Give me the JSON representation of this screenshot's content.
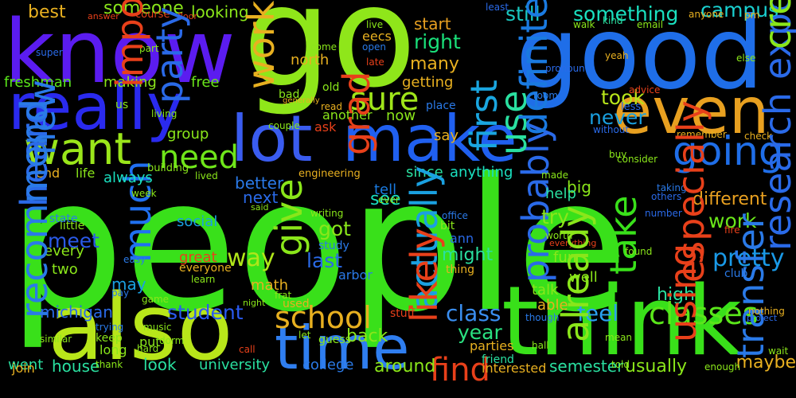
{
  "words": [
    {
      "id": "people",
      "text": "people",
      "color": "#39e01a"
    },
    {
      "id": "go",
      "text": "go",
      "color": "#8fe61a"
    },
    {
      "id": "good",
      "text": "good",
      "color": "#1f6ee8"
    },
    {
      "id": "know",
      "text": "know",
      "color": "#5b1cf0"
    },
    {
      "id": "think",
      "text": "think",
      "color": "#39e01a"
    },
    {
      "id": "also",
      "text": "also",
      "color": "#b8e61a"
    },
    {
      "id": "take",
      "text": "take",
      "color": "#39e01a"
    },
    {
      "id": "make",
      "text": "make",
      "color": "#2060f0"
    },
    {
      "id": "lot",
      "text": "lot",
      "color": "#3a5cf0"
    },
    {
      "id": "time",
      "text": "time",
      "color": "#2f7ef0"
    },
    {
      "id": "even",
      "text": "even",
      "color": "#e8a020"
    },
    {
      "id": "really",
      "text": "really",
      "color": "#2a2aee"
    },
    {
      "id": "want",
      "text": "want",
      "color": "#9ae61a"
    },
    {
      "id": "sure",
      "text": "sure",
      "color": "#a0e61a"
    },
    {
      "id": "going",
      "text": "going",
      "color": "#1f6ee8"
    },
    {
      "id": "need",
      "text": "need",
      "color": "#6fe61a"
    },
    {
      "id": "first",
      "text": "first",
      "color": "#1aa6e0"
    },
    {
      "id": "probably",
      "text": "probably",
      "color": "#2a6ae8"
    },
    {
      "id": "find",
      "text": "find",
      "color": "#e8401a"
    },
    {
      "id": "school",
      "text": "school",
      "color": "#e8b020"
    },
    {
      "id": "classes",
      "text": "classes",
      "color": "#5ae61a"
    },
    {
      "id": "pretty",
      "text": "pretty",
      "color": "#1a9ae8"
    },
    {
      "id": "class",
      "text": "class",
      "color": "#3a8ef0"
    },
    {
      "id": "feel",
      "text": "feel",
      "color": "#2aa0f0"
    },
    {
      "id": "way",
      "text": "way",
      "color": "#b0e61a"
    },
    {
      "id": "much",
      "text": "much",
      "color": "#2070f0"
    },
    {
      "id": "year",
      "text": "year",
      "color": "#2ae080"
    },
    {
      "id": "student",
      "text": "student",
      "color": "#2a5af0"
    },
    {
      "id": "got",
      "text": "got",
      "color": "#8ae61a"
    },
    {
      "id": "last",
      "text": "last",
      "color": "#2a6ae8"
    },
    {
      "id": "try",
      "text": "try",
      "color": "#8ae61a"
    },
    {
      "id": "work",
      "text": "work",
      "color": "#6ae61a"
    },
    {
      "id": "meet",
      "text": "meet",
      "color": "#2a5ae8"
    },
    {
      "id": "something",
      "text": "something",
      "color": "#1ae0c0"
    },
    {
      "id": "still",
      "text": "still",
      "color": "#1ac8c0"
    },
    {
      "id": "campus",
      "text": "campus",
      "color": "#1ad0d0"
    },
    {
      "id": "right",
      "text": "right",
      "color": "#1ae07a"
    },
    {
      "id": "took",
      "text": "took",
      "color": "#b8e61a"
    },
    {
      "id": "never",
      "text": "never",
      "color": "#1aa0e0"
    },
    {
      "id": "someone",
      "text": "someone",
      "color": "#8ae61a"
    },
    {
      "id": "looking",
      "text": "looking",
      "color": "#8ae61a"
    },
    {
      "id": "best",
      "text": "best",
      "color": "#e8b020"
    },
    {
      "id": "freshman",
      "text": "freshman",
      "color": "#5ae61a"
    },
    {
      "id": "making",
      "text": "making",
      "color": "#8ae61a"
    },
    {
      "id": "free",
      "text": "free",
      "color": "#6ae61a"
    },
    {
      "id": "many",
      "text": "many",
      "color": "#e8b020"
    },
    {
      "id": "start",
      "text": "start",
      "color": "#e8a020"
    },
    {
      "id": "getting",
      "text": "getting",
      "color": "#e8b020"
    },
    {
      "id": "north",
      "text": "north",
      "color": "#e8b020"
    },
    {
      "id": "group",
      "text": "group",
      "color": "#8ae61a"
    },
    {
      "id": "different",
      "text": "different",
      "color": "#e8a020"
    },
    {
      "id": "always",
      "text": "always",
      "color": "#1ae0c0"
    },
    {
      "id": "better",
      "text": "better",
      "color": "#2a7ae8"
    },
    {
      "id": "next",
      "text": "next",
      "color": "#2a6ae8"
    },
    {
      "id": "see",
      "text": "see",
      "color": "#1ae0c0"
    },
    {
      "id": "big",
      "text": "big",
      "color": "#8ae61a"
    },
    {
      "id": "help",
      "text": "help",
      "color": "#2ae0a0"
    },
    {
      "id": "since",
      "text": "since",
      "color": "#2ae0a0"
    },
    {
      "id": "anything",
      "text": "anything",
      "color": "#1ae0c0"
    },
    {
      "id": "tell",
      "text": "tell",
      "color": "#1a7ae0"
    },
    {
      "id": "high",
      "text": "high",
      "color": "#2ae0a0"
    },
    {
      "id": "talk",
      "text": "talk",
      "color": "#8ae61a"
    },
    {
      "id": "well",
      "text": "well",
      "color": "#8ae61a"
    },
    {
      "id": "able",
      "text": "able",
      "color": "#e8b020"
    },
    {
      "id": "fun",
      "text": "fun",
      "color": "#8ae61a"
    },
    {
      "id": "actually",
      "text": "actually",
      "color": "#1aa0e0"
    },
    {
      "id": "might",
      "text": "might",
      "color": "#2ae0a0"
    },
    {
      "id": "back",
      "text": "back",
      "color": "#8ae61a"
    },
    {
      "id": "around",
      "text": "around",
      "color": "#8ae61a"
    },
    {
      "id": "usually",
      "text": "usually",
      "color": "#8ae61a"
    },
    {
      "id": "maybe",
      "text": "maybe",
      "color": "#e8b020"
    },
    {
      "id": "semester",
      "text": "semester",
      "color": "#2ae0a0"
    },
    {
      "id": "interested",
      "text": "interested",
      "color": "#e8b020"
    },
    {
      "id": "parties",
      "text": "parties",
      "color": "#e8b020"
    },
    {
      "id": "house",
      "text": "house",
      "color": "#2ae0a0"
    },
    {
      "id": "look",
      "text": "look",
      "color": "#2ae0a0"
    },
    {
      "id": "went",
      "text": "went",
      "color": "#2ae0a0"
    },
    {
      "id": "university",
      "text": "university",
      "color": "#2ae0a0"
    },
    {
      "id": "college",
      "text": "college",
      "color": "#2a7ae8"
    },
    {
      "id": "michigan",
      "text": "michigan",
      "color": "#2a6ae8"
    },
    {
      "id": "may",
      "text": "may",
      "color": "#1aa0e0"
    },
    {
      "id": "great",
      "text": "great",
      "color": "#e8401a"
    },
    {
      "id": "social",
      "text": "social",
      "color": "#1aa0e0"
    },
    {
      "id": "every",
      "text": "every",
      "color": "#8ae61a"
    },
    {
      "id": "two",
      "text": "two",
      "color": "#8ae61a"
    },
    {
      "id": "math",
      "text": "math",
      "color": "#e8b020"
    },
    {
      "id": "used",
      "text": "used",
      "color": "#e8b020"
    },
    {
      "id": "join",
      "text": "join",
      "color": "#e8b020"
    },
    {
      "id": "put",
      "text": "put",
      "color": "#8ae61a"
    },
    {
      "id": "long",
      "text": "long",
      "color": "#8ae61a"
    },
    {
      "id": "keep",
      "text": "keep",
      "color": "#8ae61a"
    },
    {
      "id": "life",
      "text": "life",
      "color": "#8ae61a"
    },
    {
      "id": "end",
      "text": "end",
      "color": "#e8b020"
    },
    {
      "id": "new",
      "text": "new",
      "color": "#2a7ae8"
    },
    {
      "id": "use",
      "text": "use",
      "color": "#2ae0a0"
    },
    {
      "id": "definitely",
      "text": "definitely",
      "color": "#1a7ae0"
    },
    {
      "id": "say",
      "text": "say",
      "color": "#e8b020"
    },
    {
      "id": "now",
      "text": "now",
      "color": "#8ae61a"
    },
    {
      "id": "another",
      "text": "another",
      "color": "#8ae61a"
    },
    {
      "id": "ann",
      "text": "ann",
      "color": "#2a6ae8"
    },
    {
      "id": "arbor",
      "text": "arbor",
      "color": "#2a7ae8"
    },
    {
      "id": "little",
      "text": "little",
      "color": "#8ae61a"
    },
    {
      "id": "state",
      "text": "state",
      "color": "#2a7ae8"
    },
    {
      "id": "eecs",
      "text": "eecs",
      "color": "#e8b020"
    },
    {
      "id": "club",
      "text": "club",
      "color": "#2a7ae8"
    },
    {
      "id": "everyone",
      "text": "everyone",
      "color": "#e8b020"
    },
    {
      "id": "ask",
      "text": "ask",
      "color": "#e8401a"
    },
    {
      "id": "bit",
      "text": "bit",
      "color": "#8ae61a"
    },
    {
      "id": "study",
      "text": "study",
      "color": "#2a7ae8"
    },
    {
      "id": "thing",
      "text": "thing",
      "color": "#e8b020"
    },
    {
      "id": "stuff",
      "text": "stuff",
      "color": "#e8401a"
    },
    {
      "id": "friend",
      "text": "friend",
      "color": "#2ae0a0"
    },
    {
      "id": "guess",
      "text": "guess",
      "color": "#8ae61a"
    },
    {
      "id": "course",
      "text": "course",
      "color": "#e8401a"
    },
    {
      "id": "answer",
      "text": "answer",
      "color": "#e8401a"
    },
    {
      "id": "floor",
      "text": "floor",
      "color": "#e8401a"
    },
    {
      "id": "least",
      "text": "least",
      "color": "#2a6ae8"
    },
    {
      "id": "kind",
      "text": "kind",
      "color": "#2ae0a0"
    },
    {
      "id": "walk",
      "text": "walk",
      "color": "#8ae61a"
    },
    {
      "id": "email",
      "text": "email",
      "color": "#8ae61a"
    },
    {
      "id": "anyone",
      "text": "anyone",
      "color": "#e8b020"
    },
    {
      "id": "pm",
      "text": "pm",
      "color": "#e8b020"
    },
    {
      "id": "live",
      "text": "live",
      "color": "#8ae61a"
    },
    {
      "id": "part",
      "text": "part",
      "color": "#8ae61a"
    },
    {
      "id": "come",
      "text": "come",
      "color": "#8ae61a"
    },
    {
      "id": "open",
      "text": "open",
      "color": "#2a7ae8"
    },
    {
      "id": "late",
      "text": "late",
      "color": "#e8401a"
    },
    {
      "id": "old",
      "text": "old",
      "color": "#8ae61a"
    },
    {
      "id": "bad",
      "text": "bad",
      "color": "#8ae61a"
    },
    {
      "id": "generally",
      "text": "generally",
      "color": "#e8b020"
    },
    {
      "id": "read",
      "text": "read",
      "color": "#e8b020"
    },
    {
      "id": "place",
      "text": "place",
      "color": "#2a7ae8"
    },
    {
      "id": "couple",
      "text": "couple",
      "color": "#8ae61a"
    },
    {
      "id": "super",
      "text": "super",
      "color": "#2a6ae8"
    },
    {
      "id": "important",
      "text": "important",
      "color": "#e8401a"
    },
    {
      "id": "working",
      "text": "working",
      "color": "#e8b020"
    },
    {
      "id": "party",
      "text": "party",
      "color": "#2a6ae8"
    },
    {
      "id": "living",
      "text": "living",
      "color": "#8ae61a"
    },
    {
      "id": "us",
      "text": "us",
      "color": "#8ae61a"
    },
    {
      "id": "building",
      "text": "building",
      "color": "#8ae61a"
    },
    {
      "id": "pronoun",
      "text": "pronoun",
      "color": "#2a6ae8"
    },
    {
      "id": "yeah",
      "text": "yeah",
      "color": "#e8b020"
    },
    {
      "id": "advice",
      "text": "advice",
      "color": "#e8401a"
    },
    {
      "id": "room",
      "text": "room",
      "color": "#2a7ae8"
    },
    {
      "id": "less",
      "text": "less",
      "color": "#2a6ae8"
    },
    {
      "id": "without",
      "text": "without",
      "color": "#2a6ae8"
    },
    {
      "id": "else",
      "text": "else",
      "color": "#8ae61a"
    },
    {
      "id": "experience",
      "text": "experience",
      "color": "#2a6ae8"
    },
    {
      "id": "credit",
      "text": "credit",
      "color": "#8ae61a"
    },
    {
      "id": "remember",
      "text": "remember",
      "color": "#e8b020"
    },
    {
      "id": "check",
      "text": "check",
      "color": "#e8b020"
    },
    {
      "id": "consider",
      "text": "consider",
      "color": "#8ae61a"
    },
    {
      "id": "buy",
      "text": "buy",
      "color": "#8ae61a"
    },
    {
      "id": "made",
      "text": "made",
      "color": "#8ae61a"
    },
    {
      "id": "taking",
      "text": "taking",
      "color": "#2a7ae8"
    },
    {
      "id": "others",
      "text": "others",
      "color": "#2a6ae8"
    },
    {
      "id": "number",
      "text": "number",
      "color": "#2a6ae8"
    },
    {
      "id": "fire",
      "text": "fire",
      "color": "#e8401a"
    },
    {
      "id": "especially",
      "text": "especially",
      "color": "#e8401a"
    },
    {
      "id": "found",
      "text": "found",
      "color": "#8ae61a"
    },
    {
      "id": "research",
      "text": "research",
      "color": "#2a6ae8"
    },
    {
      "id": "engineering",
      "text": "engineering",
      "color": "#e8b020"
    },
    {
      "id": "lived",
      "text": "lived",
      "color": "#8ae61a"
    },
    {
      "id": "grad",
      "text": "grad",
      "color": "#e8401a"
    },
    {
      "id": "heard",
      "text": "heard",
      "color": "#2a6ae8"
    },
    {
      "id": "week",
      "text": "week",
      "color": "#8ae61a"
    },
    {
      "id": "said",
      "text": "said",
      "color": "#8ae61a"
    },
    {
      "id": "writing",
      "text": "writing",
      "color": "#8ae61a"
    },
    {
      "id": "ever",
      "text": "ever",
      "color": "#8ae61a"
    },
    {
      "id": "office",
      "text": "office",
      "color": "#2a7ae8"
    },
    {
      "id": "give",
      "text": "give",
      "color": "#8ae61a"
    },
    {
      "id": "easy",
      "text": "easy",
      "color": "#2a7ae8"
    },
    {
      "id": "learn",
      "text": "learn",
      "color": "#8ae61a"
    },
    {
      "id": "frat",
      "text": "frat",
      "color": "#8ae61a"
    },
    {
      "id": "night",
      "text": "night",
      "color": "#8ae61a"
    },
    {
      "id": "worth",
      "text": "worth",
      "color": "#8ae61a"
    },
    {
      "id": "everything",
      "text": "everything",
      "color": "#e8401a"
    },
    {
      "id": "recommend",
      "text": "recommend",
      "color": "#2a7ae8"
    },
    {
      "id": "pay",
      "text": "pay",
      "color": "#2a7ae8"
    },
    {
      "id": "game",
      "text": "game",
      "color": "#8ae61a"
    },
    {
      "id": "trying",
      "text": "trying",
      "color": "#2a7ae8"
    },
    {
      "id": "music",
      "text": "music",
      "color": "#8ae61a"
    },
    {
      "id": "similar",
      "text": "similar",
      "color": "#8ae61a"
    },
    {
      "id": "hard",
      "text": "hard",
      "color": "#8ae61a"
    },
    {
      "id": "dorm",
      "text": "dorm",
      "color": "#8ae61a"
    },
    {
      "id": "thank",
      "text": "thank",
      "color": "#8ae61a"
    },
    {
      "id": "call",
      "text": "call",
      "color": "#e8401a"
    },
    {
      "id": "let",
      "text": "let",
      "color": "#8ae61a"
    },
    {
      "id": "likely",
      "text": "likely",
      "color": "#e8401a"
    },
    {
      "id": "though",
      "text": "though",
      "color": "#2a7ae8"
    },
    {
      "id": "already",
      "text": "already",
      "color": "#8ae61a"
    },
    {
      "id": "hall",
      "text": "hall",
      "color": "#8ae61a"
    },
    {
      "id": "mean",
      "text": "mean",
      "color": "#8ae61a"
    },
    {
      "id": "told",
      "text": "told",
      "color": "#8ae61a"
    },
    {
      "id": "using",
      "text": "using",
      "color": "#e8401a"
    },
    {
      "id": "transfer",
      "text": "transfer",
      "color": "#2a7ae8"
    },
    {
      "id": "enough",
      "text": "enough",
      "color": "#8ae61a"
    },
    {
      "id": "nothing",
      "text": "nothing",
      "color": "#e8b020"
    },
    {
      "id": "project",
      "text": "project",
      "color": "#2a6ae8"
    },
    {
      "id": "wait",
      "text": "wait",
      "color": "#8ae61a"
    }
  ]
}
